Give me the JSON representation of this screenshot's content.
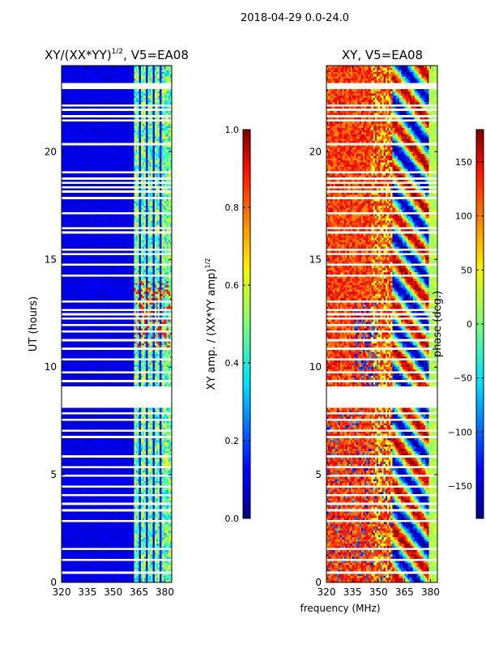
{
  "figure_title": "2018-04-29 0.0-24.0",
  "chart_data": [
    {
      "type": "heatmap",
      "title": "XY/(XX*YY)^1/2, V5=EA08",
      "title_main": "XY/(XX*YY)",
      "title_sup": "1/2",
      "title_tail": ", V5=EA08",
      "xlabel": "frequency (MHz)",
      "ylabel": "UT (hours)",
      "xlim": [
        320,
        384
      ],
      "ylim": [
        0,
        24
      ],
      "xticks": [
        "320",
        "335",
        "350",
        "365",
        "380"
      ],
      "xtick_values": [
        320,
        335,
        350,
        365,
        380
      ],
      "yticks": [
        "0",
        "5",
        "10",
        "15",
        "20"
      ],
      "ytick_values": [
        0,
        5,
        10,
        15,
        20
      ],
      "colormap": "jet",
      "clim": [
        0,
        1
      ],
      "colorbar_label": "XY amp. / (XX*YY amp)",
      "colorbar_label_sup": "1/2",
      "colorbar_ticks": [
        "0.0",
        "0.2",
        "0.4",
        "0.6",
        "0.8",
        "1.0"
      ],
      "colorbar_tick_values": [
        0,
        0.2,
        0.4,
        0.6,
        0.8,
        1.0
      ],
      "description_of_values": "near 0 below ~362 MHz; 0.3-0.7 in channels 362-382 MHz, peaks ~0.9 near 11-14 h"
    },
    {
      "type": "heatmap",
      "title": "XY, V5=EA08",
      "xlabel": "frequency (MHz)",
      "ylabel": "",
      "xlim": [
        320,
        384
      ],
      "ylim": [
        0,
        24
      ],
      "xticks": [
        "320",
        "335",
        "350",
        "365",
        "380"
      ],
      "xtick_values": [
        320,
        335,
        350,
        365,
        380
      ],
      "yticks": [
        "0",
        "5",
        "10",
        "15",
        "20"
      ],
      "ytick_values": [
        0,
        5,
        10,
        15,
        20
      ],
      "colormap": "jet",
      "clim": [
        -180,
        180
      ],
      "colorbar_label": "phase (deg.)",
      "colorbar_ticks": [
        "−150",
        "−100",
        "−50",
        "0",
        "50",
        "100",
        "150"
      ],
      "colorbar_tick_values": [
        -150,
        -100,
        -50,
        0,
        50,
        100,
        150
      ],
      "description_of_values": "phase mostly 80-150 deg below 360 MHz; mixed -180..180 above 360 MHz"
    }
  ],
  "flagged_hours": [
    0.4,
    1.0,
    1.5,
    2.8,
    3.3,
    3.6,
    4.0,
    4.4,
    4.9,
    5.3,
    5.8,
    6.7,
    7.0,
    7.5,
    7.8,
    8.1,
    8.2,
    8.3,
    8.4,
    8.5,
    8.6,
    8.7,
    8.8,
    8.9,
    9.0,
    9.3,
    9.7,
    10.3,
    10.8,
    11.2,
    11.6,
    11.9,
    12.2,
    12.4,
    12.6,
    13.0,
    14.2,
    14.7,
    15.2,
    15.4,
    16.2,
    16.4,
    17.1,
    17.8,
    18.1,
    18.3,
    18.5,
    18.7,
    19.0,
    20.3,
    21.4,
    21.6,
    21.9,
    22.1,
    22.9,
    23.0,
    23.1
  ]
}
